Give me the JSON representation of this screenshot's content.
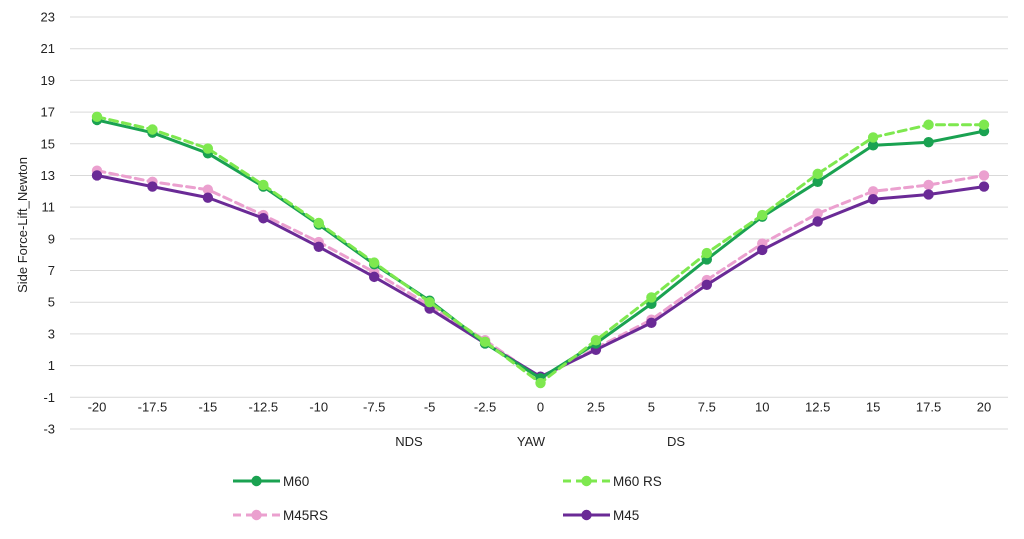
{
  "chart_data": {
    "type": "line",
    "title": "",
    "ylabel": "Side Force-Lift_Newton",
    "xlabel": "YAW",
    "x_group_labels": [
      "NDS",
      "YAW",
      "DS"
    ],
    "ylim": [
      -3,
      23
    ],
    "y_ticks": [
      -3,
      -1,
      1,
      3,
      5,
      7,
      9,
      11,
      13,
      15,
      17,
      19,
      21,
      23
    ],
    "grid": true,
    "legend_position": "bottom",
    "categories": [
      "-20",
      "-17.5",
      "-15",
      "-12.5",
      "-10",
      "-7.5",
      "-5",
      "-2.5",
      "0",
      "2.5",
      "5",
      "7.5",
      "10",
      "12.5",
      "15",
      "17.5",
      "20"
    ],
    "series": [
      {
        "name": "M60",
        "color": "#1aa251",
        "dashed": false,
        "values": [
          16.5,
          15.7,
          14.4,
          12.3,
          9.9,
          7.4,
          5.1,
          2.4,
          0.2,
          2.4,
          4.9,
          7.7,
          10.4,
          12.6,
          14.9,
          15.1,
          15.8
        ]
      },
      {
        "name": "M60 RS",
        "color": "#7ee84f",
        "dashed": true,
        "values": [
          16.7,
          15.9,
          14.7,
          12.4,
          10.0,
          7.5,
          5.0,
          2.5,
          -0.1,
          2.6,
          5.3,
          8.1,
          10.5,
          13.1,
          15.4,
          16.2,
          16.2
        ]
      },
      {
        "name": "M45RS",
        "color": "#eba0cf",
        "dashed": true,
        "values": [
          13.3,
          12.6,
          12.1,
          10.5,
          8.8,
          6.9,
          4.8,
          2.6,
          0.2,
          2.1,
          3.9,
          6.4,
          8.7,
          10.6,
          12.0,
          12.4,
          13.0
        ]
      },
      {
        "name": "M45",
        "color": "#6a2a96",
        "dashed": false,
        "values": [
          13.0,
          12.3,
          11.6,
          10.3,
          8.5,
          6.6,
          4.6,
          2.4,
          0.3,
          2.0,
          3.7,
          6.1,
          8.3,
          10.1,
          11.5,
          11.8,
          12.3
        ]
      }
    ]
  }
}
